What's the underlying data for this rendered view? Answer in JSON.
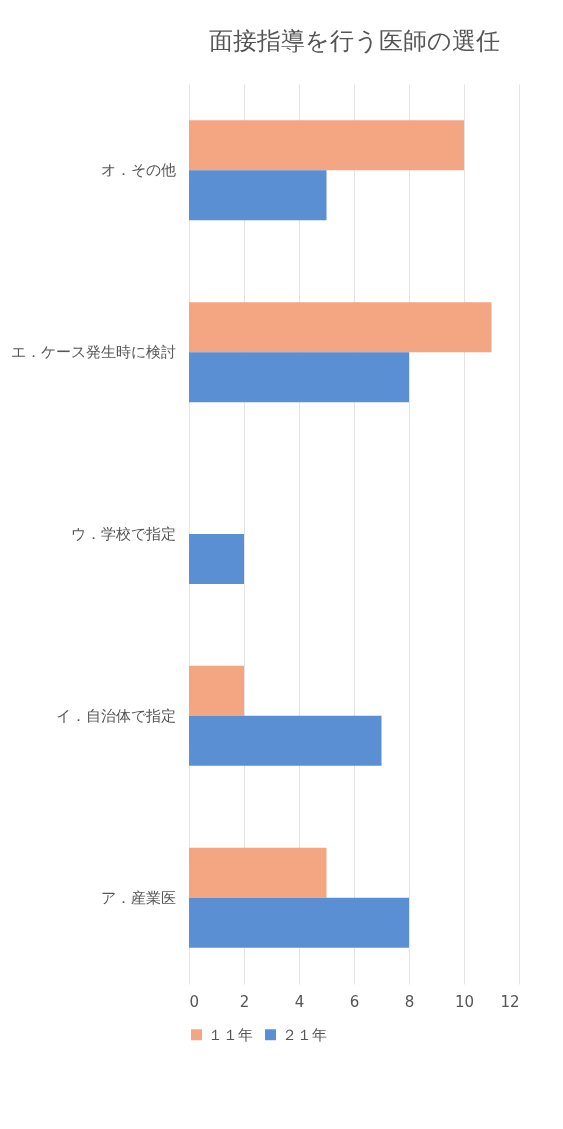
{
  "chart_data": {
    "type": "bar",
    "orientation": "horizontal",
    "title": "面接指導を行う医師の選任",
    "categories": [
      "オ．その他",
      "エ．ケース発生時に検討",
      "ウ．学校で指定",
      "イ．自治体で指定",
      "ア．産業医"
    ],
    "series": [
      {
        "name": "１１年",
        "color": "#f4a582",
        "values": [
          10,
          11,
          0,
          2,
          5
        ]
      },
      {
        "name": "２１年",
        "color": "#5b8fd4",
        "values": [
          5,
          8,
          2,
          7,
          8
        ]
      }
    ],
    "xlim": [
      0,
      12
    ],
    "xticks": [
      0,
      2,
      4,
      6,
      8,
      10,
      12
    ],
    "grid": "x",
    "legend": "bottom"
  }
}
